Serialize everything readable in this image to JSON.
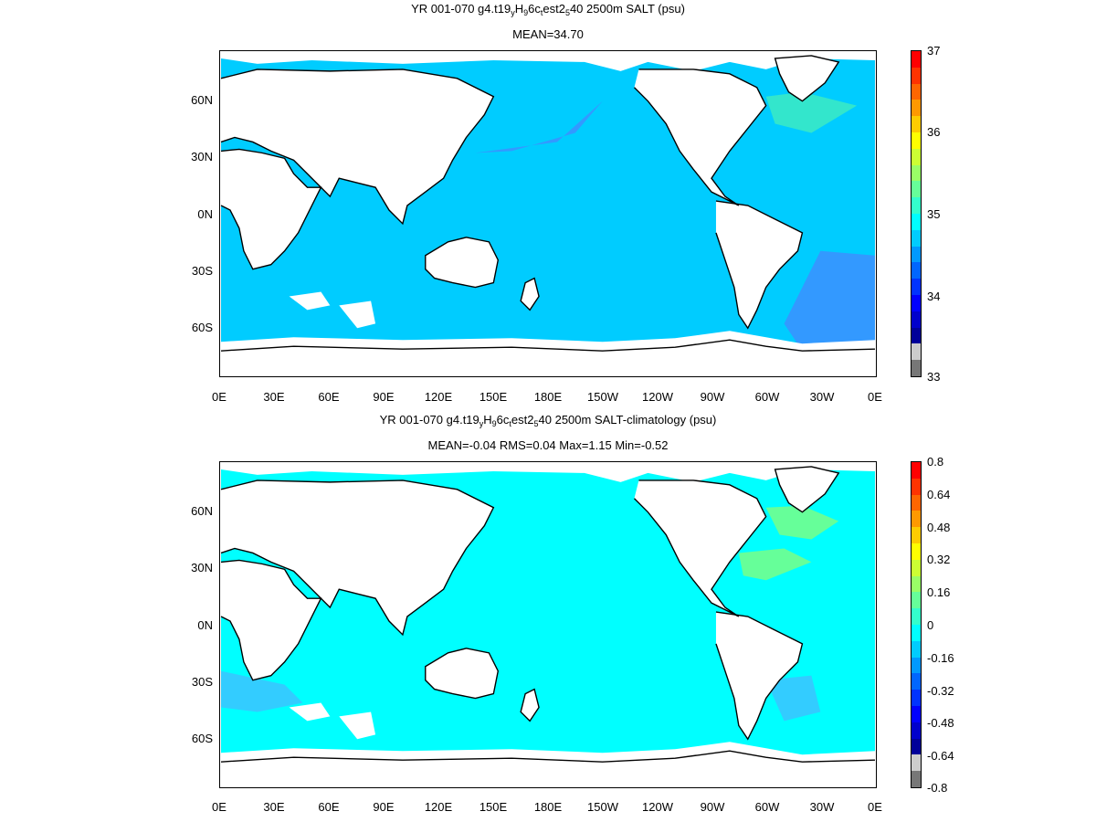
{
  "panel1": {
    "title_prefix": "YR 001-070 g4.t19",
    "t_sub1": "y",
    "t_mid1": "H",
    "t_sub2": "9",
    "t_mid2": "6c",
    "t_sub3": "t",
    "t_mid3": "est2",
    "t_sub4": "5",
    "title_suffix": "40 2500m SALT (psu)",
    "stats": "MEAN=34.70",
    "colorbar_labels": [
      "37",
      "36",
      "35",
      "34",
      "33"
    ],
    "ocean_color": "#00ccff",
    "colors": [
      "#ff0000",
      "#ff3300",
      "#ff6600",
      "#ff9900",
      "#ffcc00",
      "#ffff00",
      "#ccff33",
      "#99ff66",
      "#66ff99",
      "#33ffcc",
      "#00ffff",
      "#00ccff",
      "#0099ff",
      "#0066ff",
      "#0033ff",
      "#0000ff",
      "#0000cc",
      "#000099",
      "#cccccc",
      "#777777"
    ]
  },
  "panel2": {
    "title_prefix": "YR 001-070 g4.t19",
    "t_sub1": "y",
    "t_mid1": "H",
    "t_sub2": "9",
    "t_mid2": "6c",
    "t_sub3": "t",
    "t_mid3": "est2",
    "t_sub4": "5",
    "title_suffix": "40 2500m SALT-climatology (psu)",
    "stats": "MEAN=-0.04   RMS=0.04   Max=1.15   Min=-0.52",
    "colorbar_labels": [
      "0.8",
      "0.64",
      "0.48",
      "0.32",
      "0.16",
      "0",
      "-0.16",
      "-0.32",
      "-0.48",
      "-0.64",
      "-0.8"
    ],
    "ocean_color": "#00ffff",
    "colors": [
      "#ff0000",
      "#ff3300",
      "#ff6600",
      "#ff9900",
      "#ffcc00",
      "#ffff00",
      "#ccff33",
      "#99ff66",
      "#66ff99",
      "#33ffcc",
      "#00ffff",
      "#00ccff",
      "#0099ff",
      "#0066ff",
      "#0033ff",
      "#0000ff",
      "#0000cc",
      "#000099",
      "#cccccc",
      "#777777"
    ]
  },
  "x_ticks": [
    "0E",
    "30E",
    "60E",
    "90E",
    "120E",
    "150E",
    "180E",
    "150W",
    "120W",
    "90W",
    "60W",
    "30W",
    "0E"
  ],
  "y_ticks": [
    "60N",
    "30N",
    "0N",
    "30S",
    "60S"
  ]
}
